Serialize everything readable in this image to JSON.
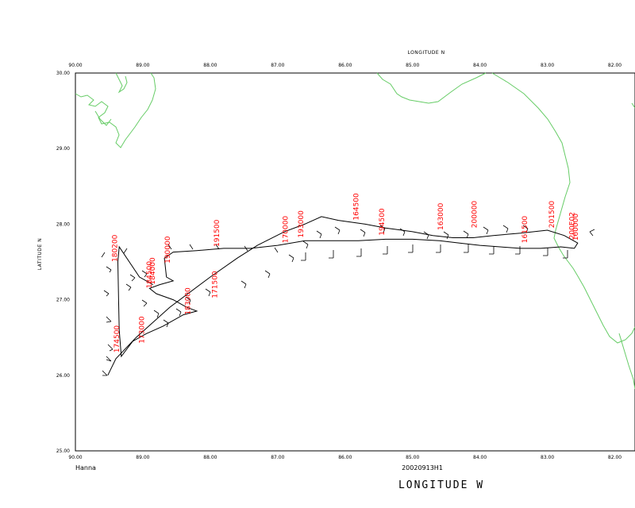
{
  "header": {
    "top_axis_title": "LONGITUDE  N"
  },
  "axes": {
    "top_ticks": [
      "90.00",
      "89.00",
      "88.00",
      "87.00",
      "86.00",
      "85.00",
      "84.00",
      "83.00",
      "82.00"
    ],
    "bottom_ticks": [
      "90.00",
      "89.00",
      "88.00",
      "87.00",
      "86.00",
      "85.00",
      "84.00",
      "83.00",
      "82.00"
    ],
    "left_ticks": [
      "30.00",
      "29.00",
      "28.00",
      "27.00",
      "26.00",
      "25.00"
    ],
    "left_title": "LATITUDE  N",
    "bottom_title": "LONGITUDE  W"
  },
  "footer": {
    "storm_name": "Hanna",
    "flight_id": "20020913H1"
  },
  "colors": {
    "coastline": "#66cc66",
    "track": "#000000",
    "labels": "#ff0000",
    "frame": "#000000"
  },
  "chart_data": {
    "type": "map-flight-track",
    "lon_range": [
      -90,
      -81.7
    ],
    "lat_range": [
      25,
      30
    ],
    "track": [
      [
        -89.52,
        26.0
      ],
      [
        -89.4,
        26.22
      ],
      [
        -89.1,
        26.5
      ],
      [
        -88.6,
        26.9
      ],
      [
        -88.0,
        27.3
      ],
      [
        -87.6,
        27.55
      ],
      [
        -87.3,
        27.72
      ],
      [
        -86.9,
        27.9
      ],
      [
        -86.6,
        28.0
      ],
      [
        -86.35,
        28.1
      ],
      [
        -86.1,
        28.05
      ],
      [
        -85.7,
        28.0
      ],
      [
        -85.4,
        27.95
      ],
      [
        -85.0,
        27.9
      ],
      [
        -84.7,
        27.85
      ],
      [
        -84.4,
        27.82
      ],
      [
        -84.1,
        27.82
      ],
      [
        -83.8,
        27.85
      ],
      [
        -83.4,
        27.88
      ],
      [
        -83.0,
        27.92
      ],
      [
        -82.75,
        27.85
      ],
      [
        -82.55,
        27.75
      ],
      [
        -82.6,
        27.68
      ],
      [
        -82.8,
        27.7
      ],
      [
        -83.1,
        27.68
      ],
      [
        -83.4,
        27.68
      ],
      [
        -83.7,
        27.7
      ],
      [
        -84.0,
        27.72
      ],
      [
        -84.3,
        27.75
      ],
      [
        -84.6,
        27.78
      ],
      [
        -85.0,
        27.8
      ],
      [
        -85.4,
        27.8
      ],
      [
        -85.8,
        27.78
      ],
      [
        -86.2,
        27.78
      ],
      [
        -86.6,
        27.78
      ],
      [
        -87.0,
        27.72
      ],
      [
        -87.4,
        27.68
      ],
      [
        -87.8,
        27.68
      ],
      [
        -88.2,
        27.65
      ],
      [
        -88.55,
        27.63
      ],
      [
        -88.68,
        27.55
      ],
      [
        -88.65,
        27.3
      ],
      [
        -88.55,
        27.25
      ],
      [
        -88.75,
        27.2
      ],
      [
        -88.9,
        27.15
      ],
      [
        -88.8,
        27.08
      ],
      [
        -88.55,
        27.0
      ],
      [
        -88.35,
        26.9
      ],
      [
        -88.2,
        26.85
      ],
      [
        -88.4,
        26.8
      ],
      [
        -88.7,
        26.65
      ],
      [
        -88.95,
        26.55
      ],
      [
        -89.15,
        26.45
      ],
      [
        -89.32,
        26.25
      ],
      [
        -89.35,
        26.6
      ],
      [
        -89.36,
        27.0
      ],
      [
        -89.37,
        27.5
      ],
      [
        -89.35,
        27.7
      ],
      [
        -89.05,
        27.3
      ],
      [
        -88.85,
        27.2
      ]
    ],
    "time_labels": [
      {
        "text": "180200",
        "lon": -89.38,
        "lat": 27.5
      },
      {
        "text": "184500",
        "lon": -88.87,
        "lat": 27.15
      },
      {
        "text": "184000",
        "lon": -88.82,
        "lat": 27.2
      },
      {
        "text": "190000",
        "lon": -88.6,
        "lat": 27.48
      },
      {
        "text": "183000",
        "lon": -88.3,
        "lat": 26.8
      },
      {
        "text": "174500",
        "lon": -89.35,
        "lat": 26.3
      },
      {
        "text": "173000",
        "lon": -88.98,
        "lat": 26.42
      },
      {
        "text": "171500",
        "lon": -87.9,
        "lat": 27.02
      },
      {
        "text": "191500",
        "lon": -87.87,
        "lat": 27.7
      },
      {
        "text": "170000",
        "lon": -86.85,
        "lat": 27.75
      },
      {
        "text": "193000",
        "lon": -86.62,
        "lat": 27.82
      },
      {
        "text": "164500",
        "lon": -85.8,
        "lat": 28.05
      },
      {
        "text": "194500",
        "lon": -85.42,
        "lat": 27.85
      },
      {
        "text": "163000",
        "lon": -84.55,
        "lat": 27.92
      },
      {
        "text": "200000",
        "lon": -84.05,
        "lat": 27.95
      },
      {
        "text": "161500",
        "lon": -83.3,
        "lat": 27.75
      },
      {
        "text": "201500",
        "lon": -82.9,
        "lat": 27.95
      },
      {
        "text": "160000",
        "lon": -82.55,
        "lat": 27.78
      },
      {
        "text": "200E02",
        "lon": -82.6,
        "lat": 27.8
      }
    ]
  }
}
